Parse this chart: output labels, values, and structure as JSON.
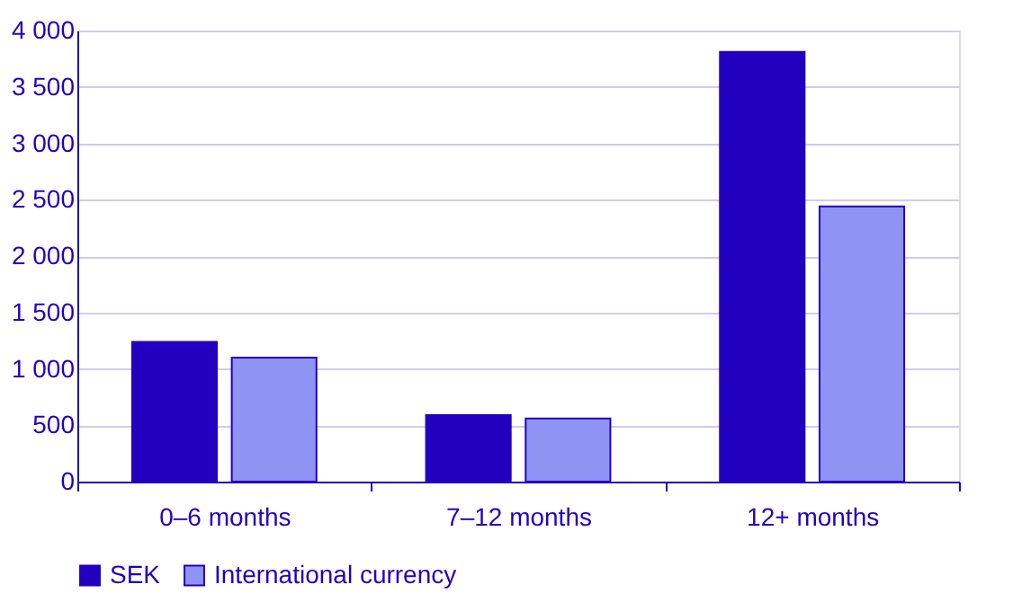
{
  "chart_data": {
    "type": "bar",
    "categories": [
      "0–6 months",
      "7–12 months",
      "12+ months"
    ],
    "series": [
      {
        "name": "SEK",
        "color": "#2200c0",
        "values": [
          1240,
          590,
          3810
        ]
      },
      {
        "name": "International currency",
        "color": "#8f94f4",
        "values": [
          1100,
          560,
          2440
        ]
      }
    ],
    "ylim": [
      0,
      4000
    ],
    "yticks": [
      0,
      500,
      {
        "value": 1000,
        "label": "1 000"
      },
      {
        "value": 1500,
        "label": "1 500"
      },
      {
        "value": 2000,
        "label": "2 000"
      },
      {
        "value": 2500,
        "label": "2 500"
      },
      {
        "value": 3000,
        "label": "3 000"
      },
      {
        "value": 3500,
        "label": "3 500"
      },
      {
        "value": 4000,
        "label": "4 000"
      }
    ],
    "grid": "y",
    "legend": "bottom"
  }
}
